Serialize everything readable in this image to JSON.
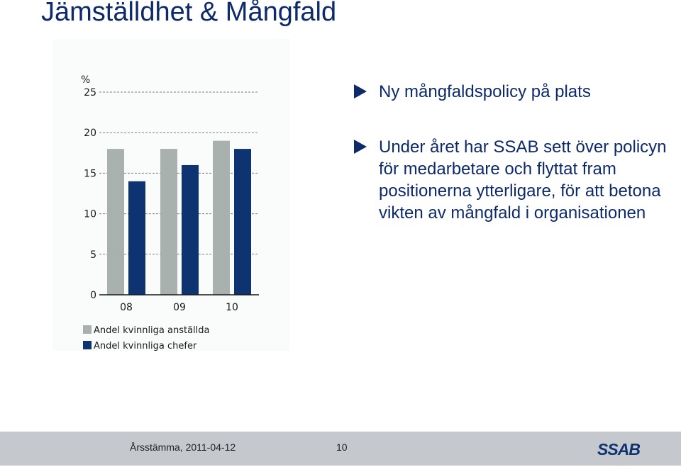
{
  "slide": {
    "title": "Jämställdhet & Mångfald",
    "bullets": [
      "Ny mångfaldspolicy på plats",
      "Under året har SSAB sett över policyn för medarbetare och flyttat fram positionerna ytterligare, för att betona vikten av mångfald i organisationen"
    ]
  },
  "footer": {
    "date": "Årsstämma, 2011-04-12",
    "page": "10",
    "logo": "SSAB"
  },
  "colors": {
    "title": "#0d2a6b",
    "series_employees": "#a9b1ae",
    "series_managers": "#0d3470",
    "footer_bg": "#c5c9ce"
  },
  "chart_data": {
    "type": "bar",
    "unit_label": "%",
    "categories": [
      "08",
      "09",
      "10"
    ],
    "series": [
      {
        "name": "Andel kvinnliga anställda",
        "values": [
          18,
          18,
          19
        ]
      },
      {
        "name": "Andel kvinnliga chefer",
        "values": [
          14,
          16,
          18
        ]
      }
    ],
    "yticks": [
      0,
      5,
      10,
      15,
      20,
      25
    ],
    "ylim": [
      0,
      25
    ],
    "grid": "dashed",
    "legend_position": "bottom-left"
  }
}
